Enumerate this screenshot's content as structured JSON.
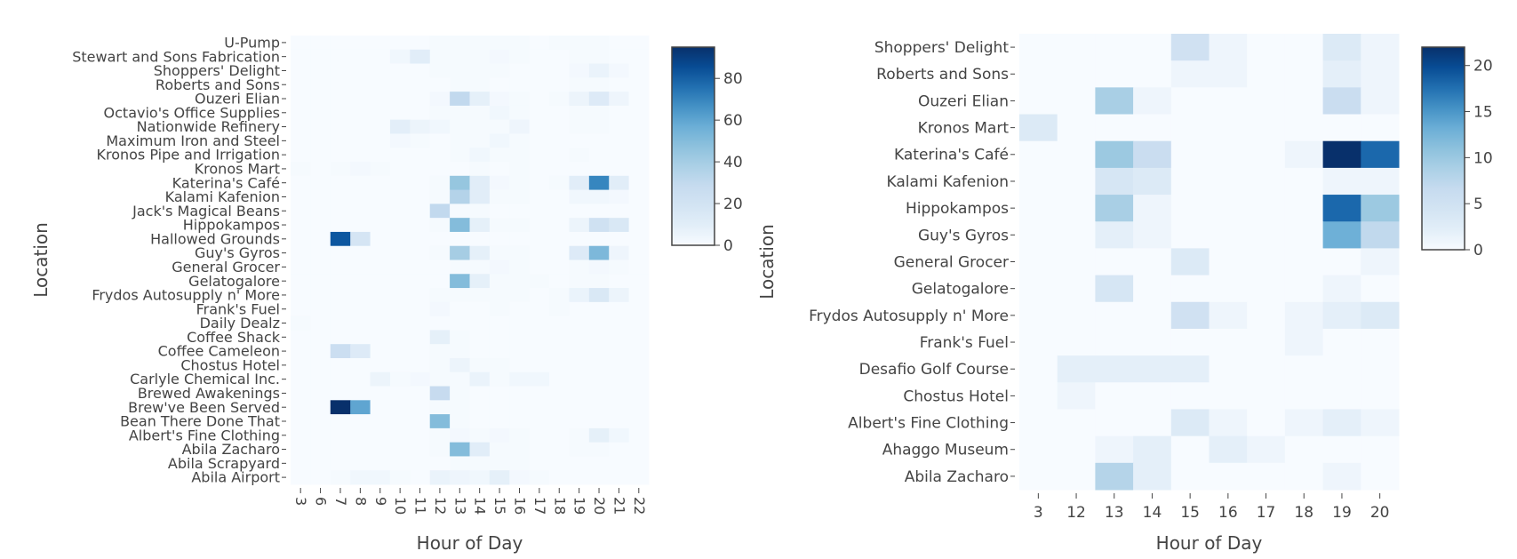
{
  "chart_data": [
    {
      "type": "heatmap",
      "xlabel": "Hour of Day",
      "ylabel": "Location",
      "x": [
        "3",
        "6",
        "7",
        "8",
        "9",
        "10",
        "11",
        "12",
        "13",
        "14",
        "15",
        "16",
        "17",
        "18",
        "19",
        "20",
        "21",
        "22"
      ],
      "y": [
        "U-Pump",
        "Stewart and Sons Fabrication",
        "Shoppers' Delight",
        "Roberts and Sons",
        "Ouzeri Elian",
        "Octavio's Office Supplies",
        "Nationwide Refinery",
        "Maximum Iron and Steel",
        "Kronos Pipe and Irrigation",
        "Kronos Mart",
        "Katerina's Café",
        "Kalami Kafenion",
        "Jack's Magical Beans",
        "Hippokampos",
        "Hallowed Grounds",
        "Guy's Gyros",
        "General Grocer",
        "Gelatogalore",
        "Frydos Autosupply n' More",
        "Frank's Fuel",
        "Daily Dealz",
        "Coffee Shack",
        "Coffee Cameleon",
        "Chostus Hotel",
        "Carlyle Chemical Inc.",
        "Brewed Awakenings",
        "Brew've Been Served",
        "Bean There Done That",
        "Albert's Fine Clothing",
        "Abila Zacharo",
        "Abila Scrapyard",
        "Abila Airport"
      ],
      "z": [
        [
          0,
          0,
          0,
          0,
          0,
          0,
          0,
          1,
          1,
          1,
          1,
          1,
          0,
          1,
          1,
          1,
          0,
          0
        ],
        [
          0,
          0,
          0,
          0,
          0,
          3,
          10,
          1,
          1,
          1,
          2,
          1,
          0,
          0,
          1,
          1,
          0,
          0
        ],
        [
          0,
          0,
          0,
          0,
          0,
          0,
          0,
          1,
          1,
          1,
          1,
          0,
          0,
          0,
          2,
          6,
          2,
          0
        ],
        [
          0,
          0,
          0,
          0,
          0,
          0,
          0,
          0,
          1,
          1,
          0,
          0,
          0,
          0,
          1,
          1,
          0,
          0
        ],
        [
          0,
          0,
          0,
          0,
          0,
          0,
          0,
          2,
          30,
          8,
          2,
          1,
          0,
          1,
          5,
          12,
          4,
          0
        ],
        [
          0,
          0,
          0,
          0,
          0,
          0,
          0,
          1,
          1,
          1,
          3,
          1,
          0,
          0,
          1,
          1,
          0,
          0
        ],
        [
          0,
          0,
          0,
          0,
          0,
          9,
          5,
          3,
          1,
          1,
          1,
          4,
          0,
          0,
          1,
          1,
          0,
          0
        ],
        [
          0,
          0,
          0,
          0,
          0,
          2,
          1,
          0,
          1,
          1,
          3,
          1,
          0,
          0,
          0,
          0,
          0,
          0
        ],
        [
          0,
          0,
          0,
          0,
          0,
          0,
          0,
          0,
          1,
          3,
          1,
          1,
          0,
          0,
          1,
          0,
          0,
          0
        ],
        [
          1,
          0,
          1,
          2,
          1,
          0,
          0,
          0,
          0,
          1,
          0,
          1,
          0,
          0,
          0,
          0,
          0,
          0
        ],
        [
          0,
          0,
          0,
          0,
          0,
          0,
          0,
          1,
          45,
          10,
          2,
          1,
          0,
          1,
          10,
          70,
          10,
          0
        ],
        [
          0,
          0,
          0,
          0,
          0,
          0,
          0,
          1,
          35,
          10,
          1,
          1,
          0,
          0,
          3,
          3,
          2,
          0
        ],
        [
          0,
          0,
          0,
          0,
          0,
          0,
          0,
          30,
          1,
          1,
          0,
          0,
          0,
          0,
          0,
          0,
          0,
          0
        ],
        [
          0,
          0,
          0,
          0,
          0,
          0,
          0,
          1,
          50,
          8,
          1,
          1,
          0,
          0,
          5,
          22,
          15,
          0
        ],
        [
          0,
          0,
          82,
          18,
          0,
          0,
          0,
          0,
          0,
          0,
          0,
          0,
          0,
          0,
          0,
          0,
          0,
          0
        ],
        [
          0,
          0,
          0,
          0,
          0,
          0,
          0,
          1,
          40,
          8,
          1,
          1,
          0,
          0,
          12,
          52,
          4,
          0
        ],
        [
          0,
          0,
          0,
          0,
          0,
          0,
          0,
          0,
          1,
          1,
          2,
          1,
          0,
          0,
          1,
          2,
          1,
          0
        ],
        [
          0,
          0,
          0,
          0,
          0,
          0,
          0,
          0,
          50,
          8,
          1,
          1,
          1,
          0,
          1,
          1,
          0,
          0
        ],
        [
          0,
          0,
          0,
          0,
          0,
          0,
          0,
          1,
          1,
          1,
          1,
          1,
          0,
          1,
          6,
          15,
          5,
          0
        ],
        [
          0,
          0,
          0,
          0,
          0,
          0,
          0,
          2,
          0,
          0,
          1,
          0,
          0,
          1,
          0,
          0,
          0,
          0
        ],
        [
          1,
          0,
          0,
          0,
          0,
          0,
          0,
          0,
          0,
          0,
          0,
          0,
          0,
          0,
          0,
          0,
          0,
          0
        ],
        [
          0,
          0,
          0,
          0,
          0,
          0,
          0,
          8,
          1,
          0,
          0,
          0,
          0,
          0,
          0,
          0,
          0,
          0
        ],
        [
          0,
          0,
          25,
          12,
          0,
          0,
          0,
          1,
          1,
          0,
          0,
          0,
          0,
          0,
          0,
          0,
          0,
          0
        ],
        [
          0,
          0,
          0,
          0,
          0,
          0,
          0,
          1,
          5,
          1,
          1,
          0,
          0,
          0,
          0,
          0,
          0,
          0
        ],
        [
          0,
          0,
          0,
          0,
          5,
          1,
          2,
          1,
          1,
          6,
          1,
          3,
          3,
          0,
          0,
          0,
          0,
          0
        ],
        [
          0,
          0,
          0,
          0,
          0,
          0,
          0,
          28,
          1,
          0,
          0,
          0,
          0,
          0,
          0,
          0,
          0,
          0
        ],
        [
          0,
          0,
          95,
          60,
          0,
          0,
          0,
          1,
          1,
          0,
          0,
          0,
          0,
          0,
          0,
          0,
          0,
          0
        ],
        [
          0,
          0,
          0,
          0,
          0,
          0,
          0,
          50,
          1,
          0,
          0,
          0,
          0,
          0,
          0,
          0,
          0,
          0
        ],
        [
          0,
          0,
          0,
          0,
          0,
          0,
          0,
          1,
          2,
          1,
          2,
          1,
          0,
          0,
          1,
          8,
          3,
          0
        ],
        [
          0,
          0,
          0,
          0,
          0,
          0,
          0,
          1,
          50,
          10,
          1,
          1,
          0,
          0,
          1,
          1,
          0,
          0
        ],
        [
          0,
          0,
          0,
          0,
          0,
          0,
          0,
          0,
          1,
          1,
          1,
          1,
          0,
          0,
          0,
          0,
          0,
          0
        ],
        [
          0,
          0,
          1,
          3,
          3,
          1,
          0,
          6,
          4,
          3,
          8,
          2,
          1,
          0,
          0,
          0,
          0,
          0
        ]
      ],
      "zlim": [
        0,
        95
      ],
      "colorbar_ticks": [
        0,
        20,
        40,
        60,
        80
      ],
      "colorscale": [
        "#f7fbff",
        "#08306b"
      ]
    },
    {
      "type": "heatmap",
      "xlabel": "Hour of Day",
      "ylabel": "Location",
      "x": [
        "3",
        "12",
        "13",
        "14",
        "15",
        "16",
        "17",
        "18",
        "19",
        "20"
      ],
      "y": [
        "Shoppers' Delight",
        "Roberts and Sons",
        "Ouzeri Elian",
        "Kronos Mart",
        "Katerina's Café",
        "Kalami Kafenion",
        "Hippokampos",
        "Guy's Gyros",
        "General Grocer",
        "Gelatogalore",
        "Frydos Autosupply n' More",
        "Frank's Fuel",
        "Desafio Golf Course",
        "Chostus Hotel",
        "Albert's Fine Clothing",
        "Ahaggo Museum",
        "Abila Zacharo"
      ],
      "z": [
        [
          0,
          0,
          0,
          0,
          5,
          1,
          0,
          0,
          3,
          1
        ],
        [
          0,
          0,
          0,
          0,
          1,
          1,
          0,
          0,
          2,
          1
        ],
        [
          0,
          0,
          9,
          1,
          0,
          0,
          0,
          0,
          6,
          1
        ],
        [
          3,
          0,
          0,
          0,
          0,
          0,
          0,
          0,
          0,
          0
        ],
        [
          0,
          0,
          10,
          6,
          0,
          0,
          0,
          1,
          22,
          18
        ],
        [
          0,
          0,
          4,
          3,
          0,
          0,
          0,
          0,
          1,
          1
        ],
        [
          0,
          0,
          9,
          1,
          0,
          0,
          0,
          0,
          18,
          10
        ],
        [
          0,
          0,
          2,
          1,
          0,
          0,
          0,
          0,
          13,
          7
        ],
        [
          0,
          0,
          0,
          0,
          3,
          0,
          0,
          0,
          0,
          1
        ],
        [
          0,
          0,
          4,
          0,
          0,
          0,
          0,
          0,
          1,
          0
        ],
        [
          0,
          0,
          0,
          0,
          5,
          1,
          0,
          1,
          2,
          3
        ],
        [
          0,
          0,
          0,
          0,
          0,
          0,
          0,
          1,
          0,
          0
        ],
        [
          0,
          2,
          2,
          2,
          2,
          0,
          0,
          0,
          0,
          0
        ],
        [
          0,
          1,
          0,
          0,
          0,
          0,
          0,
          0,
          0,
          0
        ],
        [
          0,
          0,
          0,
          0,
          3,
          1,
          0,
          1,
          2,
          1
        ],
        [
          0,
          0,
          1,
          2,
          0,
          2,
          1,
          0,
          0,
          0
        ],
        [
          0,
          0,
          8,
          2,
          0,
          0,
          0,
          0,
          1,
          0
        ]
      ],
      "zlim": [
        0,
        22
      ],
      "colorbar_ticks": [
        0,
        5,
        10,
        15,
        20
      ],
      "colorscale": [
        "#f7fbff",
        "#08306b"
      ]
    }
  ]
}
